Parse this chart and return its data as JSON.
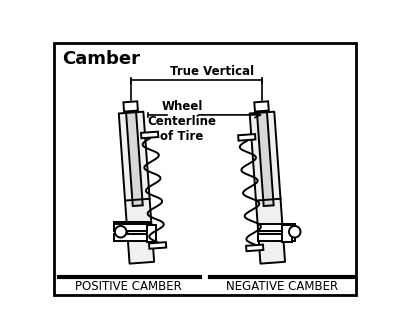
{
  "title": "Camber",
  "label_positive": "POSITIVE CAMBER",
  "label_negative": "NEGATIVE CAMBER",
  "annotation_true_vertical": "True Vertical",
  "annotation_wheel": "Wheel\nCenterline\nof Tire",
  "bg_color": "#ffffff",
  "border_color": "#000000",
  "line_color": "#000000",
  "fig_width": 4.0,
  "fig_height": 3.35,
  "dpi": 100
}
